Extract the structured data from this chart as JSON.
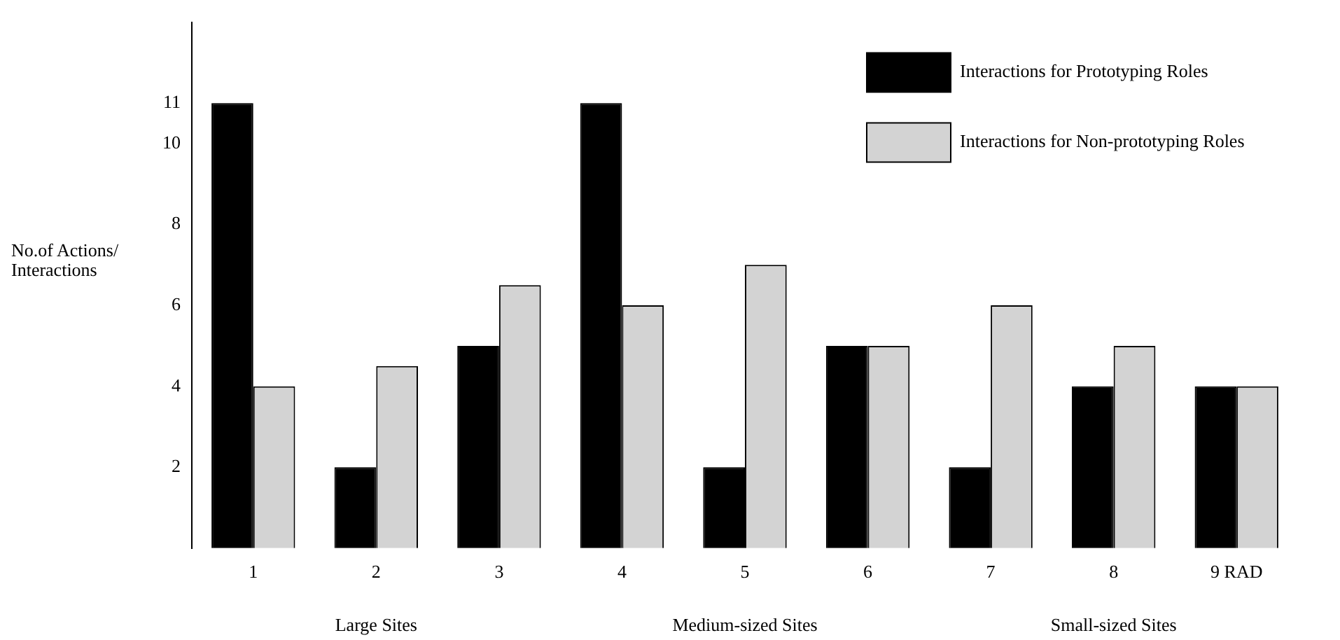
{
  "chart_data": {
    "type": "bar",
    "ylabel": "No.of Actions/ Interactions",
    "categories": [
      "1",
      "2",
      "3",
      "4",
      "5",
      "6",
      "7",
      "8",
      "9 RAD"
    ],
    "series": [
      {
        "name": "Interactions for Prototyping Roles",
        "color": "#000000",
        "values": [
          11,
          2,
          5,
          11,
          2,
          5,
          2,
          4,
          4
        ]
      },
      {
        "name": "Interactions for Non-prototyping Roles",
        "color": "#d3d3d3",
        "values": [
          4,
          4.5,
          6.5,
          6,
          7,
          5,
          6,
          5,
          4
        ]
      }
    ],
    "ylim": [
      0,
      13
    ],
    "yticks": [
      2,
      4,
      6,
      8,
      10,
      11
    ],
    "grid": false,
    "legend": "top right",
    "annotations": [
      "Large Sites",
      "Medium-sized Sites",
      "Small-sized Sites"
    ]
  }
}
